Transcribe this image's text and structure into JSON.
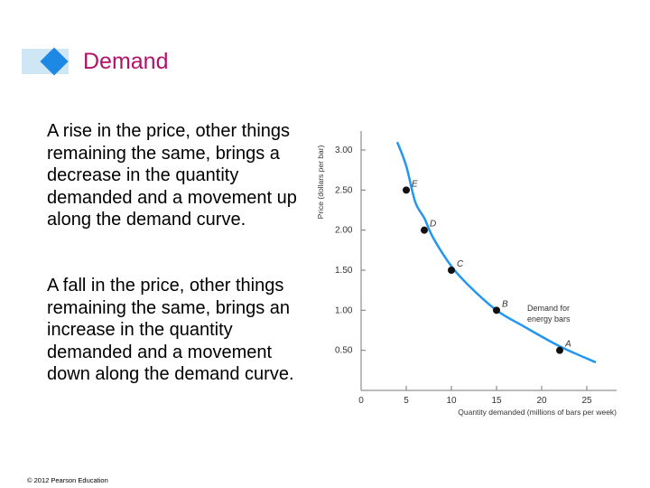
{
  "slide": {
    "title": "Demand",
    "paragraph1": "A rise in the price, other things remaining the same, brings a decrease in the quantity demanded and a movement up along the demand curve.",
    "paragraph2": "A fall in the price, other things remaining the same, brings an increase in the quantity demanded and a movement down along the demand curve.",
    "footer": "© 2012 Pearson Education",
    "colors": {
      "title": "#b0136a",
      "accent": "#1e88e5",
      "accent_light": "#cfe6f5",
      "curve": "#2196f3"
    }
  },
  "chart_data": {
    "type": "line",
    "xlabel": "Quantity demanded (millions of bars per week)",
    "ylabel": "Price (dollars per bar)",
    "xlim": [
      0,
      25
    ],
    "ylim": [
      0,
      3.0
    ],
    "x_ticks": [
      "0",
      "5",
      "10",
      "15",
      "20",
      "25"
    ],
    "y_ticks": [
      "0.50",
      "1.00",
      "1.50",
      "2.00",
      "2.50",
      "3.00"
    ],
    "grid": false,
    "series": [
      {
        "name": "Demand for energy bars",
        "x": [
          4,
          5,
          6,
          7,
          8,
          10,
          12,
          15,
          18,
          22,
          26
        ],
        "y": [
          3.1,
          2.8,
          2.35,
          2.15,
          1.9,
          1.55,
          1.3,
          1.0,
          0.8,
          0.55,
          0.35
        ]
      }
    ],
    "points": [
      {
        "label": "E",
        "x": 5,
        "y": 2.5
      },
      {
        "label": "D",
        "x": 7,
        "y": 2.0
      },
      {
        "label": "C",
        "x": 10,
        "y": 1.5
      },
      {
        "label": "B",
        "x": 15,
        "y": 1.0
      },
      {
        "label": "A",
        "x": 22,
        "y": 0.5
      }
    ],
    "curve_label": [
      "Demand for",
      "energy bars"
    ]
  }
}
